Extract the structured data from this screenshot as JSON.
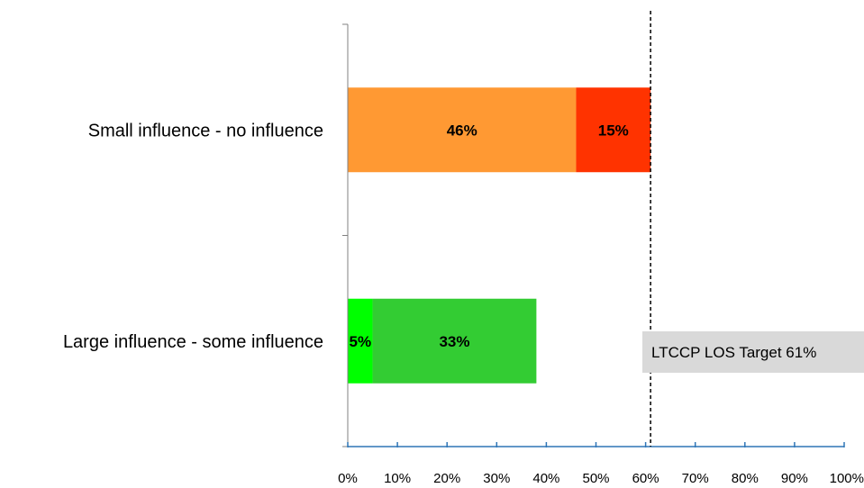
{
  "chart_data": {
    "type": "bar",
    "orientation": "horizontal",
    "stacked": true,
    "categories": [
      "Small influence - no influence",
      "Large influence - some influence"
    ],
    "segments": [
      [
        {
          "value": 46,
          "label": "46%",
          "color": "#FF9933"
        },
        {
          "value": 15,
          "label": "15%",
          "color": "#FF3300"
        }
      ],
      [
        {
          "value": 5,
          "label": "5%",
          "color": "#00FF00"
        },
        {
          "value": 33,
          "label": "33%",
          "color": "#33CC33"
        }
      ]
    ],
    "xlim": [
      0,
      100
    ],
    "x_ticks": [
      "0%",
      "10%",
      "20%",
      "30%",
      "40%",
      "50%",
      "60%",
      "70%",
      "80%",
      "90%",
      "100%"
    ],
    "grid": false,
    "target_line": {
      "value": 61,
      "style": "dashed",
      "label": "LTCCP LOS Target 61%"
    },
    "colors": {
      "axis_x": "#2E75B6",
      "axis_y": "#808080",
      "annotation_bg": "#D9D9D9"
    }
  }
}
